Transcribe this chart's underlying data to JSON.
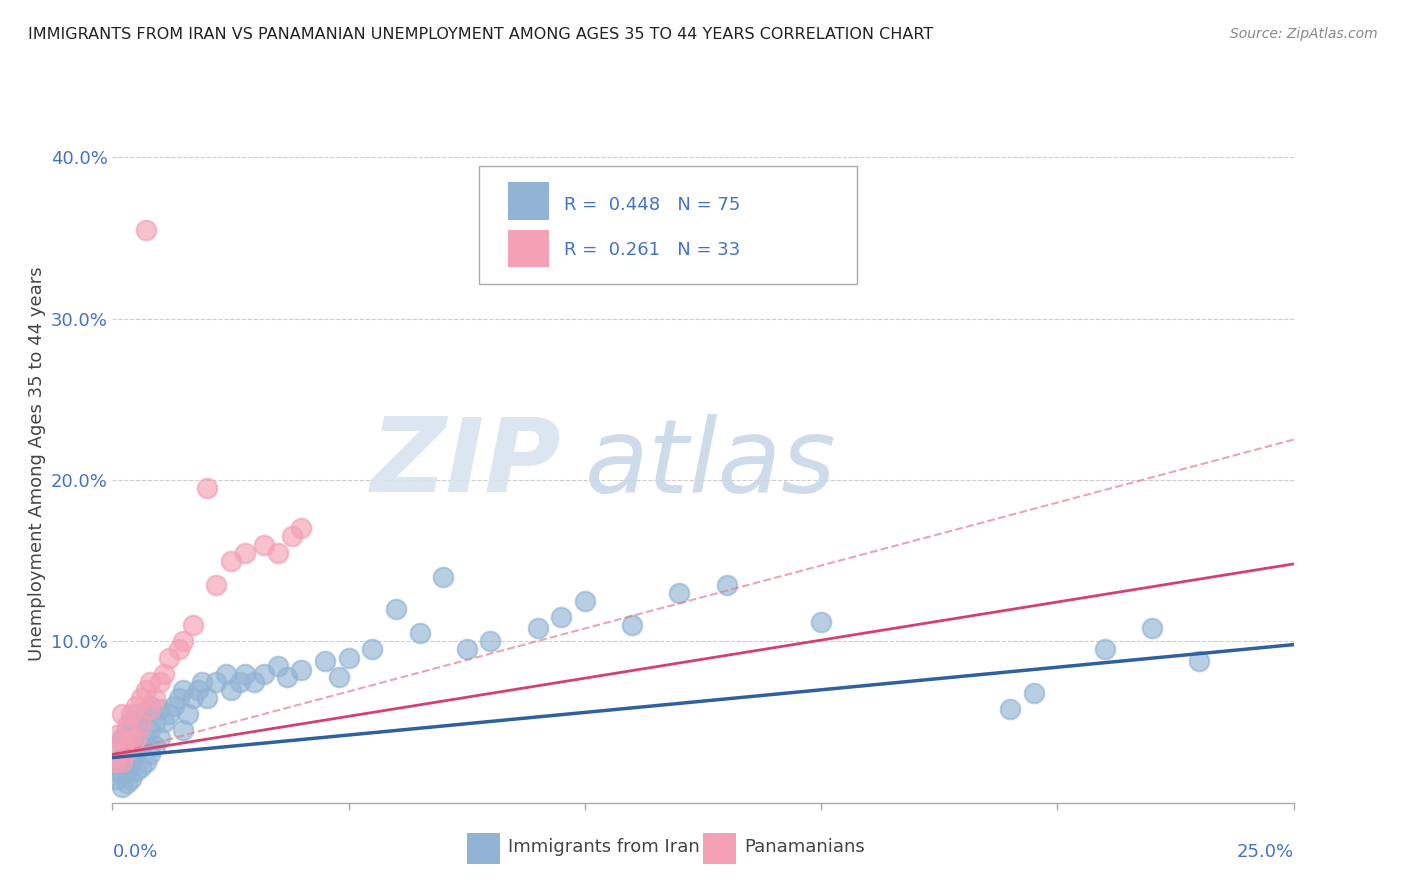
{
  "title": "IMMIGRANTS FROM IRAN VS PANAMANIAN UNEMPLOYMENT AMONG AGES 35 TO 44 YEARS CORRELATION CHART",
  "source": "Source: ZipAtlas.com",
  "ylabel": "Unemployment Among Ages 35 to 44 years",
  "xmin": 0.0,
  "xmax": 0.25,
  "ymin": 0.0,
  "ymax": 0.42,
  "yticks": [
    0.0,
    0.1,
    0.2,
    0.3,
    0.4
  ],
  "ytick_labels": [
    "",
    "10.0%",
    "20.0%",
    "30.0%",
    "40.0%"
  ],
  "xtick_labels": [
    "0.0%",
    "25.0%"
  ],
  "legend_r1": "R =  0.448   N = 75",
  "legend_r2": "R =  0.261   N = 33",
  "legend_label1": "Immigrants from Iran",
  "legend_label2": "Panamanians",
  "blue_color": "#92b4d4",
  "pink_color": "#f4a0b5",
  "blue_line_color": "#3060a0",
  "pink_line_color": "#d44070",
  "pink_dash_color": "#e08090",
  "title_color": "#222222",
  "source_color": "#888888",
  "ylabel_color": "#444444",
  "ytick_color": "#4472c4",
  "grid_color": "#cccccc",
  "watermark_zip_color": "#d8e4f0",
  "watermark_atlas_color": "#c8d8e8",
  "blue_scatter_x": [
    0.0005,
    0.001,
    0.001,
    0.001,
    0.002,
    0.002,
    0.002,
    0.002,
    0.003,
    0.003,
    0.003,
    0.003,
    0.004,
    0.004,
    0.004,
    0.004,
    0.005,
    0.005,
    0.005,
    0.005,
    0.006,
    0.006,
    0.006,
    0.007,
    0.007,
    0.007,
    0.008,
    0.008,
    0.008,
    0.009,
    0.009,
    0.01,
    0.01,
    0.011,
    0.012,
    0.013,
    0.014,
    0.015,
    0.015,
    0.016,
    0.017,
    0.018,
    0.019,
    0.02,
    0.022,
    0.024,
    0.025,
    0.027,
    0.028,
    0.03,
    0.032,
    0.035,
    0.037,
    0.04,
    0.045,
    0.048,
    0.05,
    0.055,
    0.06,
    0.065,
    0.07,
    0.075,
    0.08,
    0.09,
    0.095,
    0.1,
    0.11,
    0.12,
    0.13,
    0.15,
    0.19,
    0.195,
    0.21,
    0.22,
    0.23
  ],
  "blue_scatter_y": [
    0.02,
    0.015,
    0.025,
    0.035,
    0.01,
    0.018,
    0.028,
    0.04,
    0.012,
    0.022,
    0.032,
    0.045,
    0.015,
    0.025,
    0.038,
    0.05,
    0.02,
    0.03,
    0.042,
    0.055,
    0.022,
    0.035,
    0.048,
    0.025,
    0.04,
    0.055,
    0.03,
    0.045,
    0.06,
    0.035,
    0.05,
    0.04,
    0.058,
    0.05,
    0.055,
    0.06,
    0.065,
    0.045,
    0.07,
    0.055,
    0.065,
    0.07,
    0.075,
    0.065,
    0.075,
    0.08,
    0.07,
    0.075,
    0.08,
    0.075,
    0.08,
    0.085,
    0.078,
    0.082,
    0.088,
    0.078,
    0.09,
    0.095,
    0.12,
    0.105,
    0.14,
    0.095,
    0.1,
    0.108,
    0.115,
    0.125,
    0.11,
    0.13,
    0.135,
    0.112,
    0.058,
    0.068,
    0.095,
    0.108,
    0.088
  ],
  "pink_scatter_x": [
    0.0005,
    0.001,
    0.001,
    0.002,
    0.002,
    0.002,
    0.003,
    0.003,
    0.004,
    0.004,
    0.005,
    0.005,
    0.006,
    0.006,
    0.007,
    0.007,
    0.008,
    0.008,
    0.009,
    0.01,
    0.011,
    0.012,
    0.014,
    0.015,
    0.017,
    0.02,
    0.022,
    0.025,
    0.028,
    0.032,
    0.035,
    0.038,
    0.04
  ],
  "pink_scatter_y": [
    0.025,
    0.03,
    0.042,
    0.025,
    0.038,
    0.055,
    0.032,
    0.048,
    0.038,
    0.055,
    0.04,
    0.06,
    0.048,
    0.065,
    0.07,
    0.355,
    0.058,
    0.075,
    0.065,
    0.075,
    0.08,
    0.09,
    0.095,
    0.1,
    0.11,
    0.195,
    0.135,
    0.15,
    0.155,
    0.16,
    0.155,
    0.165,
    0.17
  ],
  "blue_trend_x": [
    0.0,
    0.25
  ],
  "blue_trend_y": [
    0.028,
    0.098
  ],
  "pink_solid_trend_x": [
    0.0,
    0.25
  ],
  "pink_solid_trend_y": [
    0.03,
    0.148
  ],
  "pink_dash_trend_x": [
    0.0,
    0.25
  ],
  "pink_dash_trend_y": [
    0.03,
    0.225
  ]
}
